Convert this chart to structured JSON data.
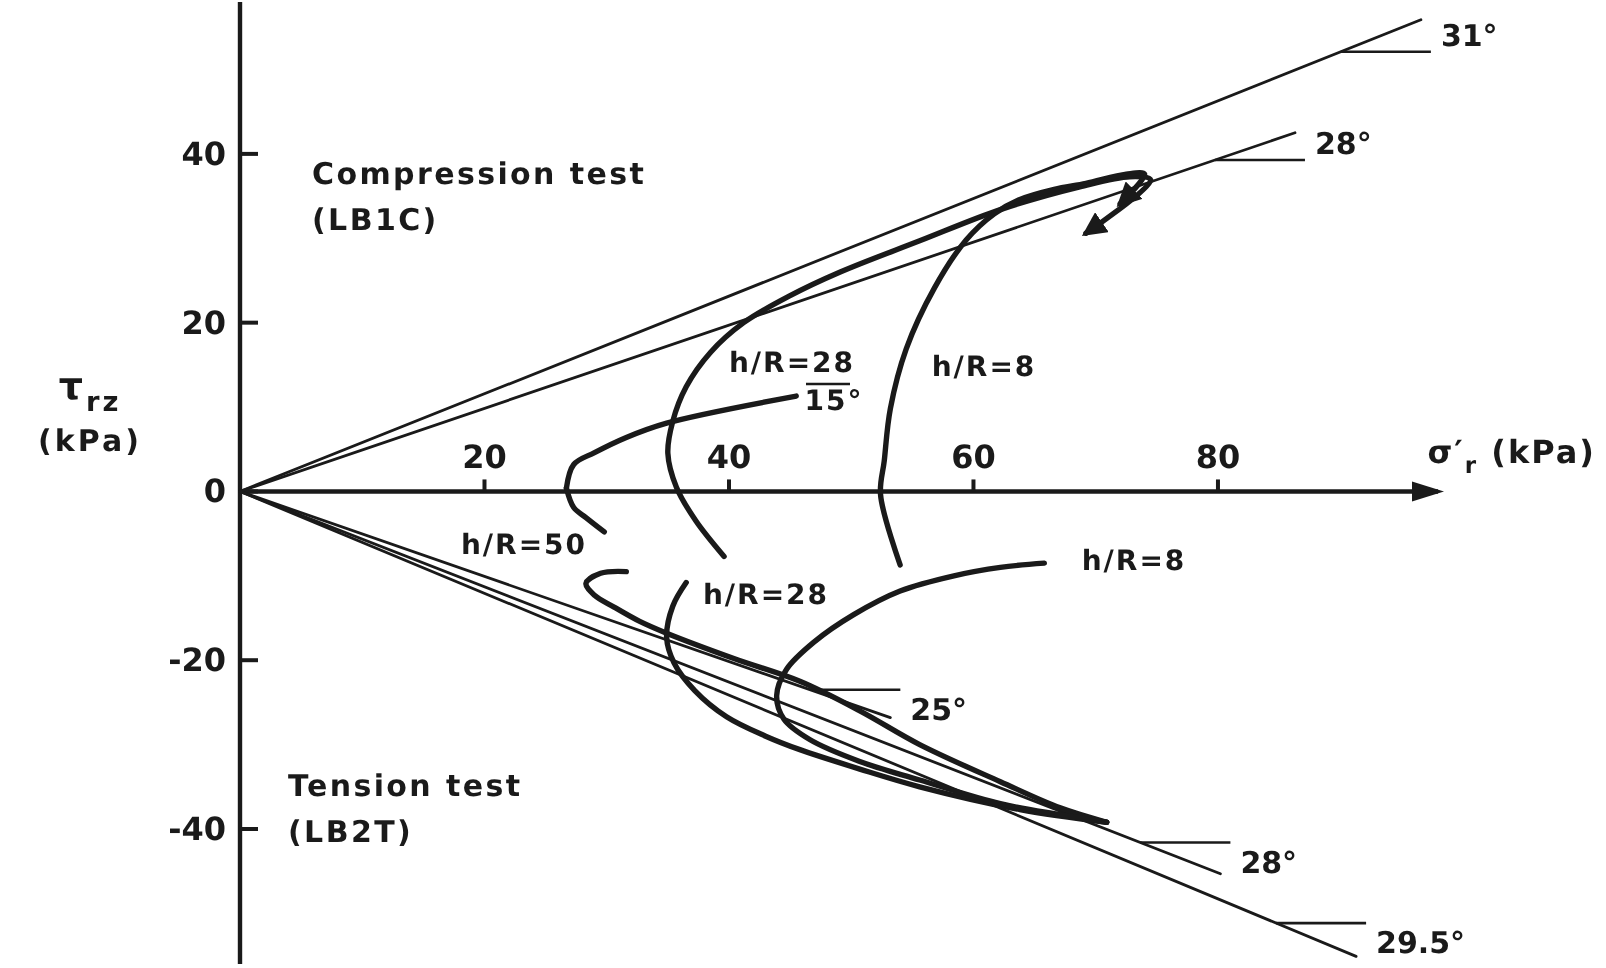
{
  "chart_data": {
    "type": "line",
    "xlabel": "σ′$_{r}$ (kPa)",
    "ylabel": "τ$_{rz}$\n(kPa)",
    "xlim": [
      0,
      98
    ],
    "ylim": [
      -56,
      58
    ],
    "xticks": [
      20,
      40,
      60,
      80
    ],
    "yticks": [
      -40,
      -20,
      0,
      20,
      40
    ],
    "series": [
      {
        "color": "#1a1a1a",
        "x": [
          0,
          96.6
        ],
        "values": [
          0,
          55.9
        ]
      },
      {
        "color": "#1a1a1a",
        "x": [
          0,
          86.3
        ],
        "values": [
          0,
          42.5
        ]
      },
      {
        "color": "#1a1a1a",
        "x": [
          0,
          53.2
        ],
        "values": [
          0,
          -26.8
        ]
      },
      {
        "color": "#1a1a1a",
        "x": [
          0,
          80.2
        ],
        "values": [
          0,
          -45.3
        ]
      },
      {
        "color": "#1a1a1a",
        "x": [
          0,
          91.3
        ],
        "values": [
          0,
          -55.1
        ]
      },
      {
        "color": "#1a1a1a",
        "x": [
          39.6,
          37.3,
          35.7,
          35.0,
          35.4,
          36.5,
          38.5,
          41.2,
          45.0,
          49.1,
          55.6,
          62.2,
          68.7,
          72.8,
          74.5,
          69.2
        ],
        "values": [
          -7.7,
          -3.5,
          0.5,
          4.5,
          8.3,
          12.4,
          16.5,
          20.0,
          23.2,
          26.0,
          29.7,
          33.4,
          36.1,
          37.3,
          36.9,
          30.6
        ]
      },
      {
        "color": "#1a1a1a",
        "x": [
          54.0,
          52.4,
          52.7,
          53.2,
          54.5,
          56.8,
          59.4,
          61.7,
          63.8,
          66.6,
          69.2,
          72.5,
          74.0,
          72.0
        ],
        "values": [
          -8.7,
          -0.4,
          3.6,
          9.8,
          16.9,
          24.1,
          29.8,
          32.9,
          34.6,
          35.8,
          36.5,
          37.6,
          37.6,
          34.1
        ]
      },
      {
        "color": "#1a1a1a",
        "x": [
          26.7,
          27.3,
          29.0,
          31.6,
          34.9,
          45.5
        ],
        "values": [
          0.4,
          3.2,
          4.6,
          6.4,
          8.1,
          11.3
        ]
      },
      {
        "color": "#1a1a1a",
        "x": [
          26.7,
          27.3,
          28.3,
          29.8,
          30.7,
          31.6,
          29.5,
          28.3,
          29.0,
          30.6,
          32.7,
          34.9,
          40.4,
          45.8,
          50.7,
          55.6,
          62.2,
          67.1,
          70.9
        ],
        "values": [
          0.4,
          -1.9,
          -3.1,
          -4.8,
          null,
          -9.5,
          -9.7,
          -10.9,
          -12.3,
          -13.7,
          -15.4,
          -16.8,
          -19.8,
          -22.5,
          -26.0,
          -30.0,
          -34.4,
          -37.5,
          -39.2
        ]
      },
      {
        "color": "#1a1a1a",
        "x": [
          36.5,
          35.4,
          34.9,
          35.5,
          37.2,
          39.8,
          43.0,
          45.8,
          50.7,
          55.6,
          63.8,
          70.9
        ],
        "values": [
          -10.8,
          -13.6,
          -17.3,
          -20.3,
          -23.6,
          -26.7,
          -29.0,
          -30.6,
          -32.9,
          -35.0,
          -37.7,
          -39.2
        ]
      },
      {
        "color": "#1a1a1a",
        "x": [
          65.8,
          62.2,
          58.4,
          54.0,
          50.2,
          47.0,
          44.7,
          43.9,
          44.5,
          46.6,
          50.7,
          55.6,
          62.2,
          67.1,
          70.9
        ],
        "values": [
          -8.5,
          -9.0,
          -10.0,
          -11.8,
          -14.6,
          -17.8,
          -21.1,
          -24.2,
          -27.0,
          -29.4,
          -32.0,
          -34.2,
          -37.0,
          -38.3,
          -39.2
        ]
      }
    ],
    "annotations": [
      "Compression test\n(LB1C)",
      "Tension test\n(LB2T)",
      "31°",
      "28°",
      "h/R=28",
      "h/R=8",
      "15°",
      "h/R=50",
      "h/R=28",
      "h/R=8",
      "25°",
      "28°",
      "29.5°"
    ]
  }
}
